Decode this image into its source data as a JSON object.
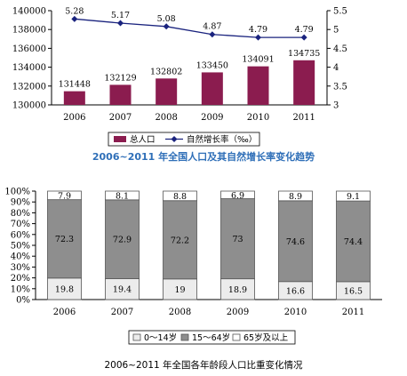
{
  "chart_data": [
    {
      "type": "bar+line",
      "categories": [
        "2006",
        "2007",
        "2008",
        "2009",
        "2010",
        "2011"
      ],
      "series": [
        {
          "name": "总人口",
          "type": "bar",
          "axis": "left",
          "values": [
            131448,
            132129,
            132802,
            133450,
            134091,
            134735
          ]
        },
        {
          "name": "自然增长率（‰）",
          "type": "line",
          "axis": "right",
          "values": [
            5.28,
            5.17,
            5.08,
            4.87,
            4.79,
            4.79
          ]
        }
      ],
      "ylim_left": [
        130000,
        140000
      ],
      "yticks_left": [
        "130000",
        "132000",
        "134000",
        "136000",
        "138000",
        "140000"
      ],
      "ylim_right": [
        3,
        5.5
      ],
      "yticks_right": [
        "3",
        "3.5",
        "4",
        "4.5",
        "5",
        "5.5"
      ],
      "legend_position": "bottom",
      "colors": {
        "bar": "#8b1c4f",
        "line": "#1a237e"
      },
      "title": "2006~2011 年全国人口及其自然增长率变化趋势"
    },
    {
      "type": "stacked-bar",
      "categories": [
        "2006",
        "2007",
        "2008",
        "2009",
        "2010",
        "2011"
      ],
      "series": [
        {
          "name": "0～14岁",
          "values": [
            19.8,
            19.4,
            19,
            18.9,
            16.6,
            16.5
          ]
        },
        {
          "name": "15～64岁",
          "values": [
            72.3,
            72.9,
            72.2,
            73,
            74.6,
            74.4
          ]
        },
        {
          "name": "65岁及以上",
          "values": [
            7.9,
            8.1,
            8.8,
            6.9,
            8.9,
            9.1
          ]
        }
      ],
      "value_labels": {
        "0～14岁": [
          "19.8",
          "19.4",
          "19",
          "18.9",
          "16.6",
          "16.5"
        ],
        "15～64岁": [
          "72.3",
          "72.9",
          "72.2",
          "73",
          "74.6",
          "74.4"
        ],
        "65岁及以上": [
          "7.9",
          "8.1",
          "8.8",
          "6.9",
          "8.9",
          "9.1"
        ]
      },
      "ylim": [
        0,
        100
      ],
      "yticks": [
        "0%",
        "10%",
        "20%",
        "30%",
        "40%",
        "50%",
        "60%",
        "70%",
        "80%",
        "90%",
        "100%"
      ],
      "legend_position": "bottom",
      "colors": {
        "0～14岁": "#ececec",
        "15～64岁": "#8e8e8e",
        "65岁及以上": "#ffffff"
      },
      "title": "2006~2011 年全国各年龄段人口比重变化情况"
    }
  ]
}
